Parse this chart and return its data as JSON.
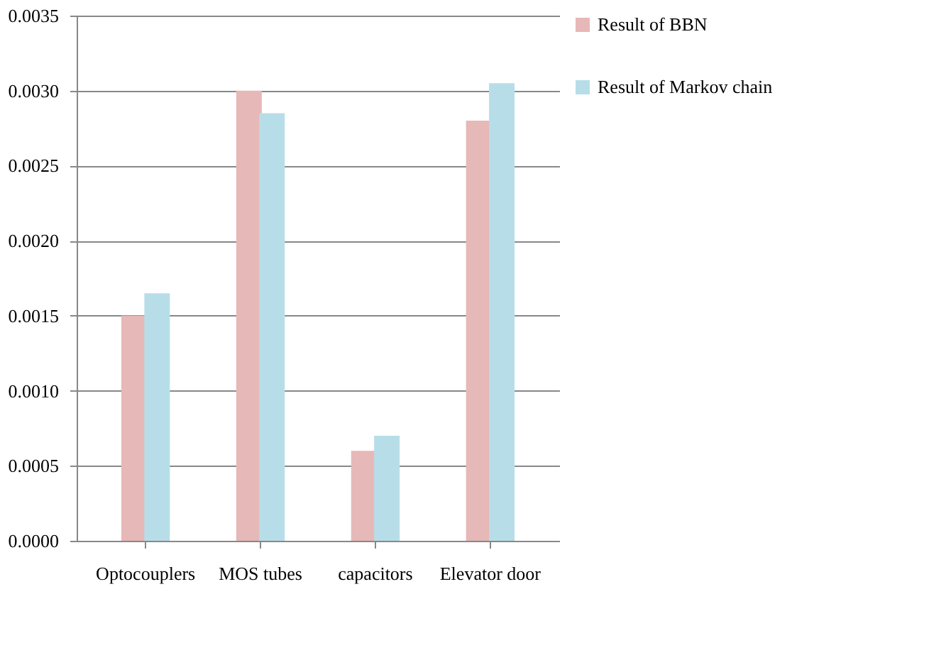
{
  "chart_data": {
    "type": "bar",
    "categories": [
      "Optocouplers",
      "MOS tubes",
      "capacitors",
      "Elevator door"
    ],
    "series": [
      {
        "name": "Result of BBN",
        "color": "#e6b8b7",
        "values": [
          0.0015,
          0.003,
          0.0006,
          0.0028
        ]
      },
      {
        "name": "Result of Markov chain",
        "color": "#b7dee8",
        "values": [
          0.00165,
          0.00285,
          0.0007,
          0.00305
        ]
      }
    ],
    "ylim": [
      0,
      0.0035
    ],
    "yticks": [
      {
        "value": 0,
        "label": "0.0000"
      },
      {
        "value": 0.0005,
        "label": "0.0005"
      },
      {
        "value": 0.001,
        "label": "0.0010"
      },
      {
        "value": 0.0015,
        "label": "0.0015"
      },
      {
        "value": 0.002,
        "label": "0.0020"
      },
      {
        "value": 0.0025,
        "label": "0.0025"
      },
      {
        "value": 0.003,
        "label": "0.0030"
      },
      {
        "value": 0.0035,
        "label": "0.0035"
      }
    ],
    "grid": "y",
    "legend": "right"
  }
}
